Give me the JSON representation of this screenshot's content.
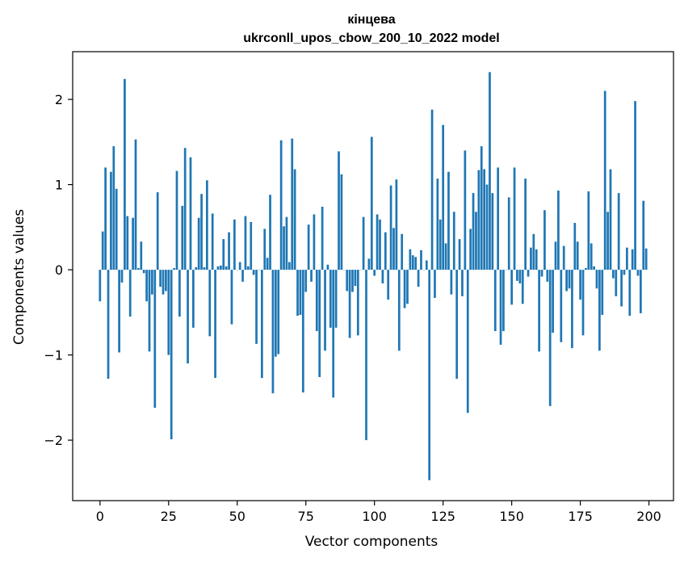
{
  "chart_data": {
    "type": "bar",
    "title_line1": "кінцева",
    "title_line2": "ukrconll_upos_cbow_200_10_2022 model",
    "xlabel": "Vector components",
    "ylabel": "Components values",
    "xlim": [
      -9.95,
      208.95
    ],
    "ylim": [
      -2.71,
      2.56
    ],
    "xticks": [
      0,
      25,
      50,
      75,
      100,
      125,
      150,
      175,
      200
    ],
    "xtick_labels": [
      "0",
      "25",
      "50",
      "75",
      "100",
      "125",
      "150",
      "175",
      "200"
    ],
    "yticks": [
      -2,
      -1,
      0,
      1,
      2
    ],
    "ytick_labels": [
      "−2",
      "−1",
      "0",
      "1",
      "2"
    ],
    "grid": false,
    "legend": "none",
    "bar_color": "#1f77b4",
    "x": [
      0,
      1,
      2,
      3,
      4,
      5,
      6,
      7,
      8,
      9,
      10,
      11,
      12,
      13,
      14,
      15,
      16,
      17,
      18,
      19,
      20,
      21,
      22,
      23,
      24,
      25,
      26,
      27,
      28,
      29,
      30,
      31,
      32,
      33,
      34,
      35,
      36,
      37,
      38,
      39,
      40,
      41,
      42,
      43,
      44,
      45,
      46,
      47,
      48,
      49,
      50,
      51,
      52,
      53,
      54,
      55,
      56,
      57,
      58,
      59,
      60,
      61,
      62,
      63,
      64,
      65,
      66,
      67,
      68,
      69,
      70,
      71,
      72,
      73,
      74,
      75,
      76,
      77,
      78,
      79,
      80,
      81,
      82,
      83,
      84,
      85,
      86,
      87,
      88,
      89,
      90,
      91,
      92,
      93,
      94,
      95,
      96,
      97,
      98,
      99,
      100,
      101,
      102,
      103,
      104,
      105,
      106,
      107,
      108,
      109,
      110,
      111,
      112,
      113,
      114,
      115,
      116,
      117,
      118,
      119,
      120,
      121,
      122,
      123,
      124,
      125,
      126,
      127,
      128,
      129,
      130,
      131,
      132,
      133,
      134,
      135,
      136,
      137,
      138,
      139,
      140,
      141,
      142,
      143,
      144,
      145,
      146,
      147,
      148,
      149,
      150,
      151,
      152,
      153,
      154,
      155,
      156,
      157,
      158,
      159,
      160,
      161,
      162,
      163,
      164,
      165,
      166,
      167,
      168,
      169,
      170,
      171,
      172,
      173,
      174,
      175,
      176,
      177,
      178,
      179,
      180,
      181,
      182,
      183,
      184,
      185,
      186,
      187,
      188,
      189,
      190,
      191,
      192,
      193,
      194,
      195,
      196,
      197,
      198,
      199
    ],
    "values": [
      -0.37,
      0.45,
      1.2,
      -1.28,
      1.15,
      1.45,
      0.95,
      -0.97,
      -0.15,
      2.24,
      0.63,
      -0.55,
      0.61,
      1.53,
      0.02,
      0.33,
      -0.04,
      -0.37,
      -0.96,
      -0.29,
      -1.62,
      0.91,
      -0.2,
      -0.29,
      -0.25,
      -1.0,
      -1.99,
      0.02,
      1.16,
      -0.55,
      0.75,
      1.43,
      -1.1,
      1.32,
      -0.68,
      0.03,
      0.61,
      0.89,
      0.03,
      1.05,
      -0.78,
      0.66,
      -1.27,
      0.04,
      0.05,
      0.36,
      0.04,
      0.44,
      -0.64,
      0.59,
      0.0,
      0.09,
      -0.14,
      0.63,
      0.04,
      0.56,
      -0.06,
      -0.87,
      0.0,
      -1.27,
      0.48,
      0.14,
      0.88,
      -1.45,
      -1.02,
      -0.99,
      1.52,
      0.51,
      0.62,
      0.09,
      1.54,
      1.18,
      -0.54,
      -0.53,
      -1.44,
      -0.26,
      0.53,
      -0.14,
      0.65,
      -0.72,
      -1.26,
      0.74,
      -0.95,
      0.06,
      -0.68,
      -1.5,
      -0.68,
      1.39,
      1.12,
      0.0,
      -0.25,
      -0.8,
      -0.26,
      -0.19,
      -0.77,
      0.0,
      0.62,
      -2.0,
      0.13,
      1.56,
      -0.07,
      0.65,
      0.59,
      -0.16,
      0.44,
      -0.35,
      0.99,
      0.49,
      1.06,
      -0.95,
      0.42,
      -0.45,
      -0.4,
      0.24,
      0.17,
      0.15,
      -0.2,
      0.23,
      0.0,
      0.11,
      -2.47,
      1.88,
      -0.33,
      1.07,
      0.59,
      1.7,
      0.31,
      1.15,
      -0.29,
      0.68,
      -1.28,
      0.36,
      -0.31,
      1.4,
      -1.68,
      0.48,
      0.9,
      0.68,
      1.17,
      1.45,
      1.18,
      1.0,
      2.32,
      0.9,
      -0.72,
      1.2,
      -0.88,
      -0.72,
      0.0,
      0.85,
      -0.41,
      1.2,
      -0.13,
      -0.16,
      -0.4,
      1.07,
      -0.08,
      0.26,
      0.42,
      0.24,
      -0.96,
      -0.08,
      0.7,
      -0.14,
      -1.6,
      -0.74,
      0.33,
      0.93,
      -0.85,
      0.28,
      -0.25,
      -0.22,
      -0.92,
      0.55,
      0.33,
      -0.35,
      -0.77,
      0.02,
      0.92,
      0.31,
      0.04,
      -0.22,
      -0.95,
      -0.53,
      2.1,
      0.68,
      1.18,
      -0.1,
      -0.31,
      0.9,
      -0.43,
      -0.06,
      0.26,
      -0.54,
      0.24,
      1.98,
      -0.07,
      -0.51,
      0.81,
      0.25
    ]
  }
}
